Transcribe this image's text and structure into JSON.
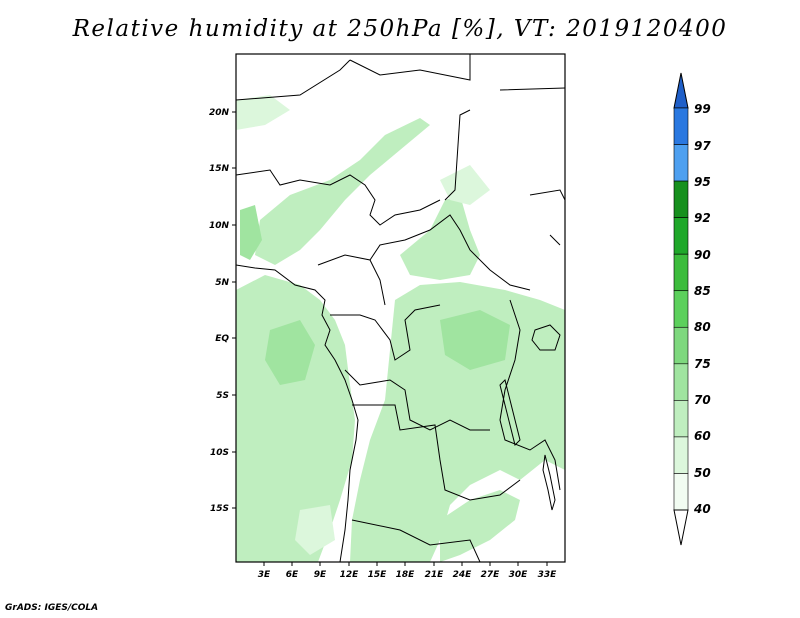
{
  "title": "Relative humidity at 250hPa [%], VT: 2019120400",
  "credit": "GrADS: IGES/COLA",
  "map": {
    "lat_labels": [
      "20N",
      "15N",
      "10N",
      "5N",
      "EQ",
      "5S",
      "10S",
      "15S"
    ],
    "lon_labels": [
      "3E",
      "6E",
      "9E",
      "12E",
      "15E",
      "18E",
      "21E",
      "24E",
      "27E",
      "30E",
      "33E"
    ]
  },
  "colorbar": {
    "levels": [
      "99",
      "97",
      "95",
      "92",
      "90",
      "85",
      "80",
      "75",
      "70",
      "60",
      "50",
      "40"
    ],
    "colors": [
      "#1f5fc8",
      "#2a78e0",
      "#4ea0f0",
      "#17901e",
      "#1fa82a",
      "#3cbc3c",
      "#5cd05c",
      "#7ed87e",
      "#a0e4a0",
      "#bfeebf",
      "#dcf7dc",
      "#f2fcf2"
    ]
  }
}
